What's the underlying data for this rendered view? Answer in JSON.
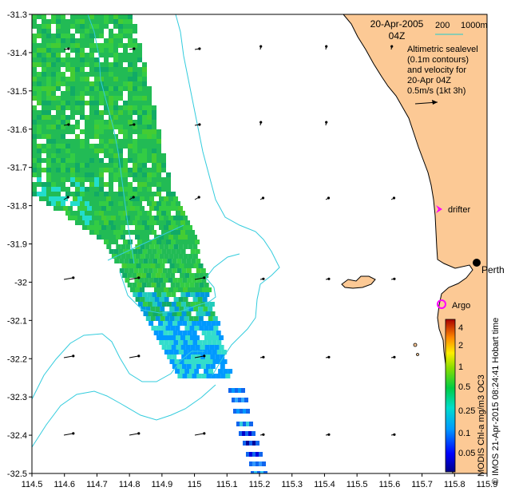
{
  "title": {
    "date": "20-Apr-2005",
    "time": "04Z"
  },
  "bathymetry_legend": {
    "label_200": "200",
    "label_1000": "1000m",
    "line_color": "#66ccbb"
  },
  "description": {
    "line1": "Altimetric sealevel",
    "line2": "(0.1m contours)",
    "line3": "and velocity for",
    "line4": "20-Apr 04Z",
    "line5": "0.5m/s (1kt 3h)"
  },
  "places": {
    "drifter": "drifter",
    "perth": "Perth",
    "argo": "Argo"
  },
  "colors": {
    "land": "#fcc995",
    "drifter_marker": "#ff00ff",
    "argo_marker": "#ff00ff",
    "contour": "#33ccdd"
  },
  "axes": {
    "x_ticks": [
      "114.5",
      "114.6",
      "114.7",
      "114.8",
      "114.9",
      "115",
      "115.1",
      "115.2",
      "115.3",
      "115.4",
      "115.5",
      "115.6",
      "115.7",
      "115.8",
      "115.9"
    ],
    "y_ticks": [
      "-31.3",
      "-31.4",
      "-31.5",
      "-31.6",
      "-31.7",
      "-31.8",
      "-31.9",
      "-32",
      "-32.1",
      "-32.2",
      "-32.3",
      "-32.4",
      "-32.5"
    ],
    "x_range": [
      114.5,
      115.9
    ],
    "y_range": [
      -32.5,
      -31.3
    ]
  },
  "colorbar": {
    "labels": [
      "4",
      "2",
      "1",
      "0.5",
      "0.25",
      "0.1",
      "0.05"
    ],
    "caption": "MODIS Chl-a mg/m3 OC3"
  },
  "credit": "© IMOS 21-Apr-2015 08:24:41 Hobart time"
}
